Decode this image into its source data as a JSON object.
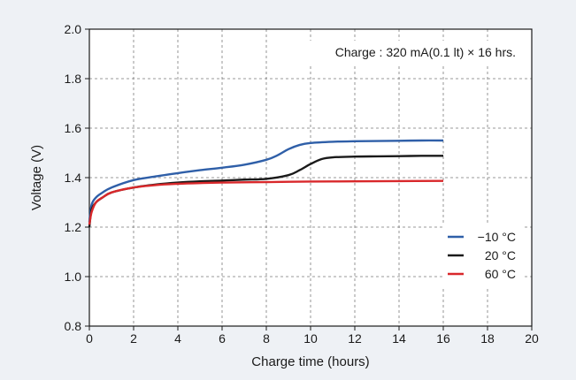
{
  "chart_data": {
    "type": "line",
    "annotation": "Charge : 320 mA(0.1 lt) × 16 hrs.",
    "xlabel": "Charge time (hours)",
    "ylabel": "Voltage (V)",
    "xlim": [
      0,
      20
    ],
    "ylim": [
      0.8,
      2.0
    ],
    "x_ticks": [
      0,
      2,
      4,
      6,
      8,
      10,
      12,
      14,
      16,
      18,
      20
    ],
    "y_ticks": [
      0.8,
      1.0,
      1.2,
      1.4,
      1.6,
      1.8,
      2.0
    ],
    "y_tick_labels": [
      "0.8",
      "1.0",
      "1.2",
      "1.4",
      "1.6",
      "1.8",
      "2.0"
    ],
    "grid": true,
    "legend_position": "right",
    "series": [
      {
        "name": "−10 °C",
        "color": "#2f5fa8",
        "x": [
          0,
          0.1,
          0.3,
          0.6,
          1,
          2,
          3,
          4,
          5,
          6,
          7,
          8,
          8.5,
          9,
          9.5,
          10,
          11,
          12,
          13,
          14,
          15,
          16
        ],
        "y": [
          1.22,
          1.29,
          1.32,
          1.34,
          1.36,
          1.39,
          1.405,
          1.418,
          1.43,
          1.44,
          1.452,
          1.472,
          1.49,
          1.515,
          1.532,
          1.54,
          1.545,
          1.547,
          1.548,
          1.549,
          1.55,
          1.55
        ]
      },
      {
        "name": "20 °C",
        "color": "#1a1a1a",
        "x": [
          0,
          0.1,
          0.3,
          0.6,
          1,
          2,
          3,
          4,
          5,
          6,
          7,
          8,
          9,
          9.5,
          10,
          10.5,
          11,
          12,
          13,
          14,
          15,
          16
        ],
        "y": [
          1.2,
          1.27,
          1.3,
          1.32,
          1.34,
          1.36,
          1.372,
          1.38,
          1.385,
          1.388,
          1.392,
          1.395,
          1.41,
          1.43,
          1.455,
          1.475,
          1.482,
          1.485,
          1.486,
          1.487,
          1.488,
          1.488
        ]
      },
      {
        "name": "60 °C",
        "color": "#d9282b",
        "x": [
          0,
          0.1,
          0.3,
          0.6,
          1,
          2,
          3,
          4,
          5,
          6,
          8,
          10,
          12,
          14,
          16
        ],
        "y": [
          1.21,
          1.26,
          1.3,
          1.32,
          1.34,
          1.36,
          1.37,
          1.375,
          1.378,
          1.38,
          1.382,
          1.384,
          1.385,
          1.386,
          1.387
        ]
      }
    ]
  }
}
